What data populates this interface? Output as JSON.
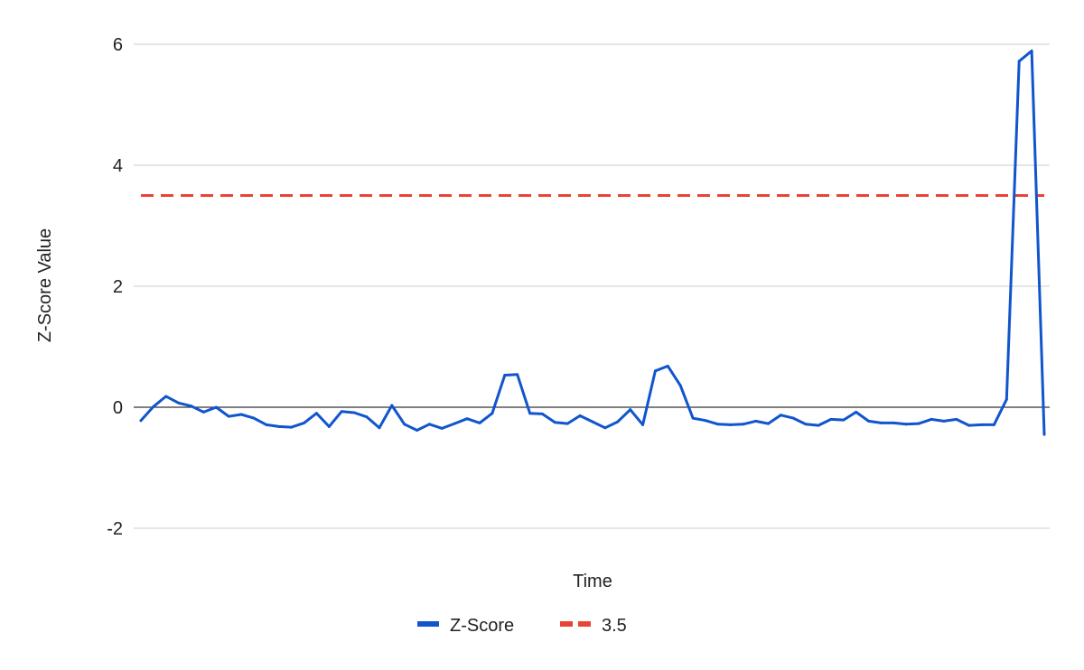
{
  "chart_data": {
    "type": "line",
    "title": "",
    "xlabel": "Time",
    "ylabel": "Z-Score Value",
    "ylim": [
      -2,
      6
    ],
    "yticks": [
      -2,
      0,
      2,
      4,
      6
    ],
    "grid": true,
    "legend_position": "bottom",
    "series": [
      {
        "name": "Z-Score",
        "color": "#1155cc",
        "style": "solid",
        "values": [
          -0.22,
          0.01,
          0.18,
          0.07,
          0.02,
          -0.08,
          0.0,
          -0.15,
          -0.12,
          -0.18,
          -0.29,
          -0.32,
          -0.33,
          -0.26,
          -0.1,
          -0.32,
          -0.07,
          -0.09,
          -0.16,
          -0.34,
          0.03,
          -0.28,
          -0.38,
          -0.28,
          -0.35,
          -0.27,
          -0.19,
          -0.26,
          -0.1,
          0.53,
          0.54,
          -0.1,
          -0.11,
          -0.25,
          -0.27,
          -0.14,
          -0.24,
          -0.34,
          -0.24,
          -0.04,
          -0.29,
          0.6,
          0.68,
          0.36,
          -0.18,
          -0.22,
          -0.28,
          -0.29,
          -0.28,
          -0.23,
          -0.27,
          -0.13,
          -0.18,
          -0.28,
          -0.3,
          -0.2,
          -0.21,
          -0.08,
          -0.23,
          -0.26,
          -0.26,
          -0.28,
          -0.27,
          -0.2,
          -0.23,
          -0.2,
          -0.3,
          -0.29,
          -0.29,
          0.13,
          5.72,
          5.89,
          -0.45
        ]
      },
      {
        "name": "3.5",
        "color": "#ea4335",
        "style": "dashed",
        "constant": 3.5
      }
    ]
  }
}
